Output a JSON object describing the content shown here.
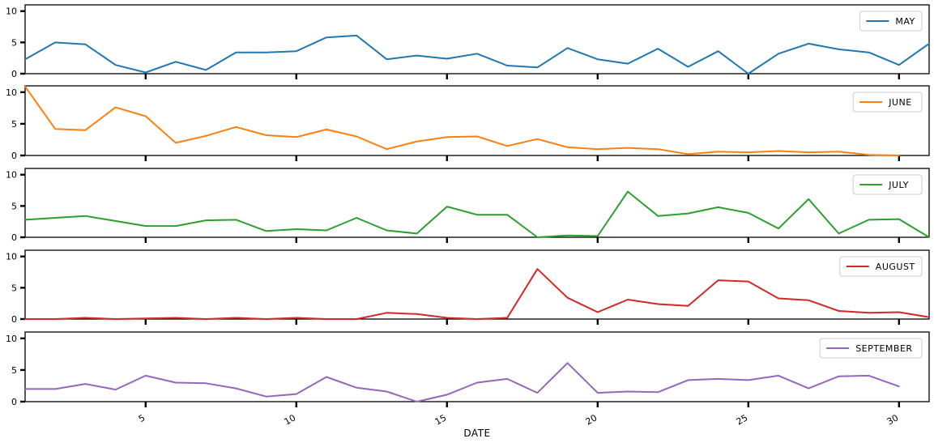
{
  "chart_data": {
    "type": "line",
    "xlabel": "DATE",
    "xlim": [
      1,
      31
    ],
    "ylim": [
      0,
      11
    ],
    "x_ticks": [
      5,
      10,
      15,
      20,
      25,
      30
    ],
    "y_ticks": [
      0,
      5,
      10
    ],
    "legend_position": "top-right",
    "series": [
      {
        "name": "MAY",
        "color": "#1f77b4",
        "x": [
          1,
          2,
          3,
          4,
          5,
          6,
          7,
          8,
          9,
          10,
          11,
          12,
          13,
          14,
          15,
          16,
          17,
          18,
          19,
          20,
          21,
          22,
          23,
          24,
          25,
          26,
          27,
          28,
          29,
          30,
          31
        ],
        "values": [
          2.3,
          5.0,
          4.7,
          1.4,
          0.2,
          1.9,
          0.6,
          3.4,
          3.4,
          3.6,
          5.8,
          6.1,
          2.3,
          2.9,
          2.4,
          3.2,
          1.3,
          1.0,
          4.1,
          2.3,
          1.6,
          4.0,
          1.1,
          3.6,
          0.0,
          3.2,
          4.8,
          3.9,
          3.4,
          1.4,
          4.8
        ]
      },
      {
        "name": "JUNE",
        "color": "#ff7f0e",
        "x": [
          1,
          2,
          3,
          4,
          5,
          6,
          7,
          8,
          9,
          10,
          11,
          12,
          13,
          14,
          15,
          16,
          17,
          18,
          19,
          20,
          21,
          22,
          23,
          24,
          25,
          26,
          27,
          28,
          29,
          30
        ],
        "values": [
          10.9,
          4.2,
          4.0,
          7.6,
          6.2,
          2.0,
          3.1,
          4.5,
          3.2,
          2.9,
          4.1,
          3.0,
          1.0,
          2.2,
          2.9,
          3.0,
          1.5,
          2.6,
          1.3,
          1.0,
          1.2,
          1.0,
          0.2,
          0.6,
          0.5,
          0.7,
          0.5,
          0.6,
          0.1,
          0.0
        ]
      },
      {
        "name": "JULY",
        "color": "#2ca02c",
        "x": [
          1,
          2,
          3,
          4,
          5,
          6,
          7,
          8,
          9,
          10,
          11,
          12,
          13,
          14,
          15,
          16,
          17,
          18,
          19,
          20,
          21,
          22,
          23,
          24,
          25,
          26,
          27,
          28,
          29,
          30,
          31
        ],
        "values": [
          2.8,
          3.1,
          3.4,
          2.6,
          1.8,
          1.8,
          2.7,
          2.8,
          1.0,
          1.3,
          1.1,
          3.1,
          1.1,
          0.6,
          4.9,
          3.6,
          3.6,
          0.0,
          0.3,
          0.2,
          7.3,
          3.4,
          3.8,
          4.8,
          3.9,
          1.4,
          6.1,
          0.6,
          2.8,
          2.9,
          0.0
        ]
      },
      {
        "name": "AUGUST",
        "color": "#d62728",
        "x": [
          1,
          2,
          3,
          4,
          5,
          6,
          7,
          8,
          9,
          10,
          11,
          12,
          13,
          14,
          15,
          16,
          17,
          18,
          19,
          20,
          21,
          22,
          23,
          24,
          25,
          26,
          27,
          28,
          29,
          30,
          31
        ],
        "values": [
          0.0,
          0.0,
          0.2,
          0.0,
          0.1,
          0.2,
          0.0,
          0.2,
          0.0,
          0.2,
          0.0,
          0.0,
          1.0,
          0.8,
          0.2,
          0.0,
          0.2,
          8.0,
          3.4,
          1.1,
          3.1,
          2.4,
          2.1,
          6.2,
          6.0,
          3.3,
          3.0,
          1.3,
          1.0,
          1.1,
          0.3
        ]
      },
      {
        "name": "SEPTEMBER",
        "color": "#9467bd",
        "x": [
          1,
          2,
          3,
          4,
          5,
          6,
          7,
          8,
          9,
          10,
          11,
          12,
          13,
          14,
          15,
          16,
          17,
          18,
          19,
          20,
          21,
          22,
          23,
          24,
          25,
          26,
          27,
          28,
          29,
          30
        ],
        "values": [
          2.0,
          2.0,
          2.8,
          1.9,
          4.1,
          3.0,
          2.9,
          2.1,
          0.8,
          1.2,
          3.9,
          2.2,
          1.6,
          0.0,
          1.1,
          3.0,
          3.6,
          1.4,
          6.1,
          1.4,
          1.6,
          1.5,
          3.4,
          3.6,
          3.4,
          4.1,
          2.1,
          4.0,
          4.1,
          2.4
        ]
      }
    ]
  }
}
